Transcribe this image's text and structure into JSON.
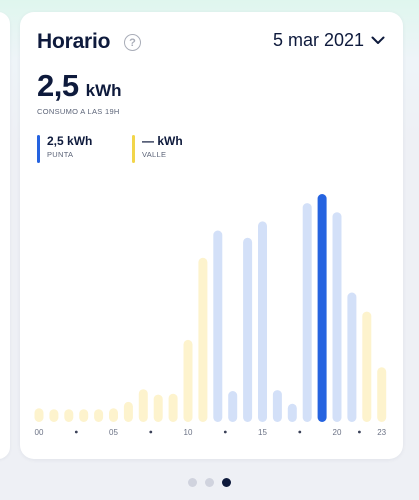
{
  "card": {
    "title": "Horario",
    "help_icon": "question-circle-icon",
    "date": "5 mar 2021",
    "date_icon": "chevron-down-icon",
    "value": "2,5",
    "unit": "kWh",
    "caption": "CONSUMO A LAS 19H"
  },
  "legend": [
    {
      "value": "2,5 kWh",
      "label": "PUNTA",
      "color": "#2563e0"
    },
    {
      "value": "— kWh",
      "label": "VALLE",
      "color": "#f2d54a"
    }
  ],
  "colors": {
    "punta_light": "#d3e0f8",
    "valle_light": "#fdf3cd",
    "selected": "#2563e0"
  },
  "chart_data": {
    "type": "bar",
    "x_labels": [
      "00",
      "05",
      "10",
      "15",
      "20",
      "23"
    ],
    "hours": [
      0,
      1,
      2,
      3,
      4,
      5,
      6,
      7,
      8,
      9,
      10,
      11,
      12,
      13,
      14,
      15,
      16,
      17,
      18,
      19,
      20,
      21,
      22,
      23
    ],
    "values": [
      0.15,
      0.14,
      0.14,
      0.14,
      0.14,
      0.15,
      0.22,
      0.36,
      0.3,
      0.31,
      0.9,
      1.8,
      2.1,
      0.34,
      2.02,
      2.2,
      0.35,
      0.2,
      2.4,
      2.5,
      2.3,
      1.42,
      1.21,
      0.6
    ],
    "period": [
      "valle",
      "valle",
      "valle",
      "valle",
      "valle",
      "valle",
      "valle",
      "valle",
      "valle",
      "valle",
      "valle",
      "valle",
      "punta",
      "punta",
      "punta",
      "punta",
      "punta",
      "punta",
      "punta",
      "punta",
      "punta",
      "punta",
      "valle",
      "valle"
    ],
    "selected_hour": 19
  },
  "pagination": {
    "count": 3,
    "active": 2
  }
}
